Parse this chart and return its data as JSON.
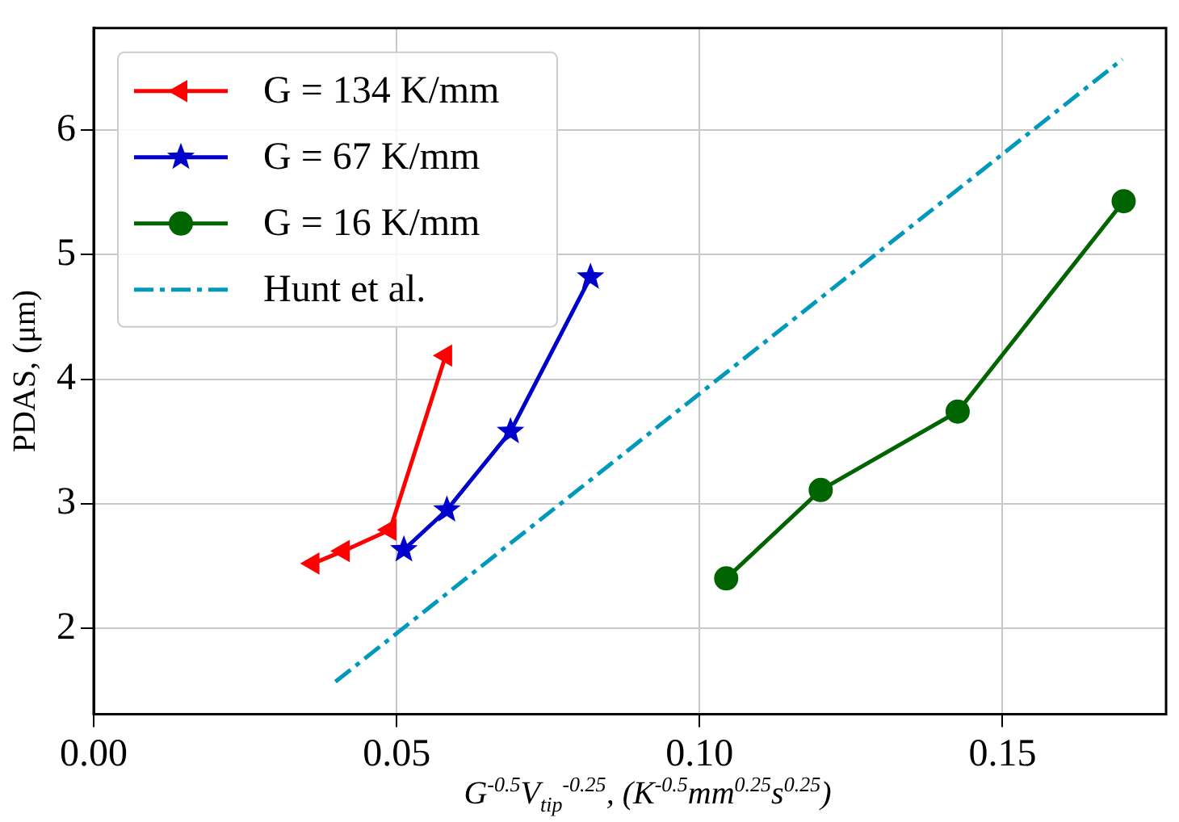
{
  "chart_data": {
    "type": "line",
    "xlabel": "G$^{-0.5}$V$_{tip}$$^{-0.25}$, (K$^{-0.5}$mm$^{0.25}$s$^{0.25}$)",
    "ylabel": "PDAS, (μm)",
    "xlim": [
      0,
      0.177
    ],
    "ylim": [
      1.31,
      6.82
    ],
    "xticks": [
      {
        "value": 0,
        "label": "0.00"
      },
      {
        "value": 0.05,
        "label": "0.05"
      },
      {
        "value": 0.1,
        "label": "0.10"
      },
      {
        "value": 0.15,
        "label": "0.15"
      }
    ],
    "yticks": [
      2,
      3,
      4,
      5,
      6
    ],
    "grid": true,
    "legend": "top left",
    "series": [
      {
        "name": "G = 134 K/mm",
        "color": "#ff0000",
        "marker": "triangle",
        "x": [
          0.0362,
          0.0412,
          0.0489,
          0.0581
        ],
        "values": [
          2.52,
          2.62,
          2.79,
          4.19
        ]
      },
      {
        "name": "G = 67 K/mm",
        "color": "#0000cc",
        "marker": "star",
        "x": [
          0.0512,
          0.0583,
          0.0688,
          0.082
        ],
        "values": [
          2.63,
          2.95,
          3.58,
          4.82
        ]
      },
      {
        "name": "G = 16 K/mm",
        "color": "#006400",
        "marker": "circle",
        "x": [
          0.1044,
          0.12,
          0.1426,
          0.17
        ],
        "values": [
          2.4,
          3.11,
          3.74,
          5.43
        ]
      },
      {
        "name": "Hunt et al.",
        "color": "#0099bb",
        "marker": "none",
        "line_style": "dashed",
        "x": [
          0.0399,
          0.1698
        ],
        "values": [
          1.57,
          6.57
        ]
      }
    ]
  }
}
